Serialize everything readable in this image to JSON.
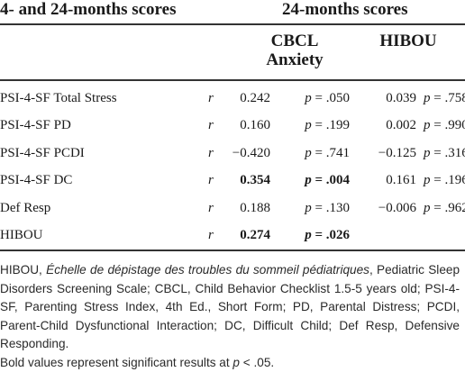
{
  "table": {
    "header_left": "4- and 24-months scores",
    "header_group": "24-months scores",
    "col_cbcl_line1": "CBCL",
    "col_cbcl_line2": "Anxiety",
    "col_hibou": "HIBOU",
    "rows": [
      {
        "label": "PSI-4-SF Total Stress",
        "stat": "r",
        "cbcl_r": "0.242",
        "cbcl_p": "p = .050",
        "hibou_r": "0.039",
        "hibou_p": "p = .758",
        "bold": false
      },
      {
        "label": "PSI-4-SF PD",
        "stat": "r",
        "cbcl_r": "0.160",
        "cbcl_p": "p = .199",
        "hibou_r": "0.002",
        "hibou_p": "p = .990",
        "bold": false
      },
      {
        "label": "PSI-4-SF PCDI",
        "stat": "r",
        "cbcl_r": "−0.420",
        "cbcl_p": "p = .741",
        "hibou_r": "−0.125",
        "hibou_p": "p = .316",
        "bold": false
      },
      {
        "label": "PSI-4-SF DC",
        "stat": "r",
        "cbcl_r": "0.354",
        "cbcl_p": "p = .004",
        "hibou_r": "0.161",
        "hibou_p": "p = .196",
        "bold": true
      },
      {
        "label": "Def Resp",
        "stat": "r",
        "cbcl_r": "0.188",
        "cbcl_p": "p = .130",
        "hibou_r": "−0.006",
        "hibou_p": "p = .962",
        "bold": false
      },
      {
        "label": "HIBOU",
        "stat": "r",
        "cbcl_r": "0.274",
        "cbcl_p": "p = .026",
        "hibou_r": "",
        "hibou_p": "",
        "bold": true
      }
    ]
  },
  "footnote": {
    "hibou_abbr": "HIBOU, ",
    "hibou_full": "Échelle de dépistage des troubles du sommeil pédiatriques",
    "rest": ", Pediatric Sleep Disorders Screening Scale; CBCL, Child Behavior Checklist 1.5-5 years old; PSI-4-SF, Parenting Stress Index, 4th Ed., Short Form; PD, Parental Distress; PCDI, Parent-Child Dysfunctional Interaction; DC, Difficult Child; Def Resp, Defensive Responding.",
    "bold_note_a": "Bold values represent significant results at ",
    "bold_note_p": "p",
    "bold_note_b": " < .05."
  }
}
